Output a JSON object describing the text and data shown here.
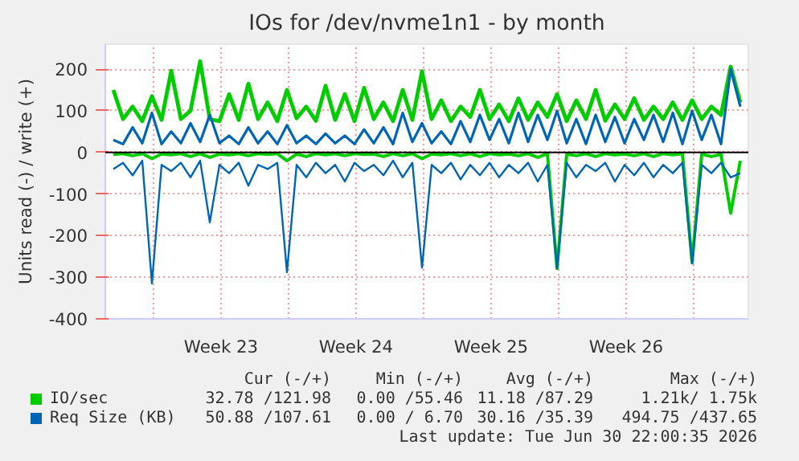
{
  "chart_data": {
    "type": "line",
    "title": "IOs for /dev/nvme1n1 - by month",
    "ylabel": "Units read (-) / write (+)",
    "x": [
      "2026-05-29T22:00",
      "2026-05-30T10:00",
      "2026-05-30T22:00",
      "2026-05-31T10:00",
      "2026-05-31T22:00",
      "2026-06-01T10:00",
      "2026-06-01T22:00",
      "2026-06-02T10:00",
      "2026-06-02T22:00",
      "2026-06-03T10:00",
      "2026-06-03T22:00",
      "2026-06-04T10:00",
      "2026-06-04T22:00",
      "2026-06-05T10:00",
      "2026-06-05T22:00",
      "2026-06-06T10:00",
      "2026-06-06T22:00",
      "2026-06-07T10:00",
      "2026-06-07T22:00",
      "2026-06-08T10:00",
      "2026-06-08T22:00",
      "2026-06-09T10:00",
      "2026-06-09T22:00",
      "2026-06-10T10:00",
      "2026-06-10T22:00",
      "2026-06-11T10:00",
      "2026-06-11T22:00",
      "2026-06-12T10:00",
      "2026-06-12T22:00",
      "2026-06-13T10:00",
      "2026-06-13T22:00",
      "2026-06-14T10:00",
      "2026-06-14T22:00",
      "2026-06-15T10:00",
      "2026-06-15T22:00",
      "2026-06-16T10:00",
      "2026-06-16T22:00",
      "2026-06-17T10:00",
      "2026-06-17T22:00",
      "2026-06-18T10:00",
      "2026-06-18T22:00",
      "2026-06-19T10:00",
      "2026-06-19T22:00",
      "2026-06-20T10:00",
      "2026-06-20T22:00",
      "2026-06-21T10:00",
      "2026-06-21T22:00",
      "2026-06-22T10:00",
      "2026-06-22T22:00",
      "2026-06-23T10:00",
      "2026-06-23T22:00",
      "2026-06-24T10:00",
      "2026-06-24T22:00",
      "2026-06-25T10:00",
      "2026-06-25T22:00",
      "2026-06-26T10:00",
      "2026-06-26T22:00",
      "2026-06-27T10:00",
      "2026-06-27T22:00",
      "2026-06-28T10:00",
      "2026-06-28T22:00",
      "2026-06-29T10:00",
      "2026-06-29T22:00",
      "2026-06-30T10:00",
      "2026-06-30T22:00",
      "2026-07-01T10:00"
    ],
    "series": [
      {
        "name": "IO/sec",
        "color": "#00cc00",
        "values": [
          150,
          80,
          110,
          75,
          135,
          78,
          196,
          80,
          100,
          219,
          80,
          75,
          140,
          78,
          165,
          80,
          120,
          75,
          150,
          82,
          110,
          76,
          160,
          78,
          140,
          75,
          155,
          80,
          120,
          75,
          150,
          78,
          195,
          80,
          125,
          75,
          110,
          85,
          150,
          80,
          115,
          75,
          130,
          78,
          120,
          85,
          140,
          75,
          125,
          80,
          150,
          76,
          115,
          80,
          130,
          78,
          110,
          80,
          120,
          78,
          125,
          80,
          110,
          90,
          206,
          120
        ]
      },
      {
        "color": "#00cc00",
        "values": [
          -5,
          -3,
          -8,
          -3,
          -15,
          -4,
          -6,
          -3,
          -10,
          -3,
          -12,
          -4,
          -6,
          -3,
          -8,
          -3,
          -5,
          -3,
          -20,
          -4,
          -10,
          -3,
          -6,
          -3,
          -8,
          -3,
          -5,
          -4,
          -10,
          -3,
          -8,
          -3,
          -15,
          -4,
          -6,
          -3,
          -8,
          -3,
          -10,
          -3,
          -6,
          -4,
          -8,
          -3,
          -12,
          -3,
          -279,
          -4,
          -8,
          -3,
          -10,
          -3,
          -6,
          -4,
          -8,
          -3,
          -10,
          -3,
          -6,
          -3,
          -265,
          -4,
          -10,
          -5,
          -146,
          -20
        ]
      },
      {
        "name": "Req Size (KB)",
        "color": "#0066b3",
        "values": [
          30,
          20,
          60,
          22,
          95,
          20,
          50,
          22,
          70,
          25,
          90,
          22,
          40,
          20,
          60,
          22,
          50,
          20,
          65,
          22,
          40,
          20,
          45,
          22,
          40,
          20,
          55,
          22,
          60,
          20,
          95,
          25,
          70,
          22,
          50,
          20,
          75,
          25,
          90,
          30,
          80,
          22,
          95,
          25,
          90,
          30,
          100,
          22,
          80,
          20,
          90,
          25,
          85,
          22,
          80,
          30,
          90,
          25,
          95,
          20,
          100,
          30,
          90,
          20,
          200,
          110
        ]
      },
      {
        "color": "#0066b3",
        "values": [
          -40,
          -25,
          -55,
          -20,
          -315,
          -30,
          -45,
          -25,
          -60,
          -20,
          -168,
          -30,
          -50,
          -25,
          -80,
          -30,
          -40,
          -25,
          -288,
          -30,
          -60,
          -25,
          -50,
          -30,
          -70,
          -25,
          -45,
          -30,
          -55,
          -20,
          -60,
          -25,
          -277,
          -30,
          -50,
          -25,
          -65,
          -30,
          -55,
          -25,
          -60,
          -30,
          -50,
          -25,
          -70,
          -30,
          -279,
          -25,
          -60,
          -30,
          -45,
          -25,
          -70,
          -30,
          -55,
          -25,
          -60,
          -30,
          -50,
          -25,
          -267,
          -30,
          -50,
          -25,
          -60,
          -50
        ]
      }
    ],
    "xlim": [
      "2026-05-29T12:00",
      "2026-07-01T20:00"
    ],
    "xticks": [
      {
        "value": "2026-06-01",
        "label": null
      },
      {
        "value": "2026-06-04T12:00",
        "label": "Week 23"
      },
      {
        "value": "2026-06-08",
        "label": null
      },
      {
        "value": "2026-06-11T12:00",
        "label": "Week 24"
      },
      {
        "value": "2026-06-15",
        "label": null
      },
      {
        "value": "2026-06-18T12:00",
        "label": "Week 25"
      },
      {
        "value": "2026-06-22",
        "label": null
      },
      {
        "value": "2026-06-25T12:00",
        "label": "Week 26"
      },
      {
        "value": "2026-06-29",
        "label": null
      }
    ],
    "ylim": [
      -400,
      260
    ],
    "yticks": [
      -400,
      -300,
      -200,
      -100,
      0,
      100,
      200
    ],
    "ref_lines": [
      {
        "axis": "y",
        "value": 0,
        "color": "#000000"
      }
    ],
    "grid": true,
    "legend": "bottom",
    "marker": "none",
    "line_style": "solid",
    "annotations": [
      "Cur (-/+)",
      "Min (-/+)",
      "Avg (-/+)",
      "Max (-/+)",
      "32.78 /121.98",
      "0.00 /55.46",
      "11.18 /87.29",
      "1.21k/ 1.75k",
      "50.88 /107.61",
      "0.00 / 6.70",
      "30.16 /35.39",
      "494.75 /437.65",
      "Last update: Tue Jun 30 22:00:35 2026"
    ]
  }
}
